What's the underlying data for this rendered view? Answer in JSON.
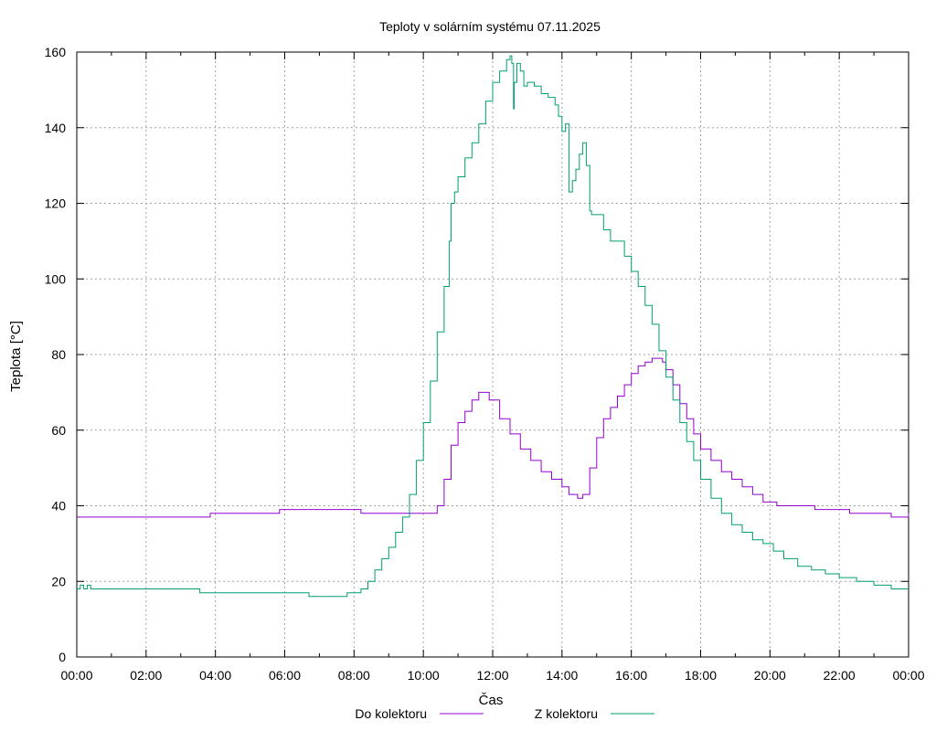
{
  "chart_data": {
    "type": "line",
    "title": "Teploty v solárním systému 07.11.2025",
    "xlabel": "Čas",
    "ylabel": "Teplota [°C]",
    "xlim": [
      0,
      24
    ],
    "ylim": [
      0,
      160
    ],
    "grid": true,
    "legend_position": "bottom-center",
    "x_ticks": [
      "00:00",
      "02:00",
      "04:00",
      "06:00",
      "08:00",
      "10:00",
      "12:00",
      "14:00",
      "16:00",
      "18:00",
      "20:00",
      "22:00",
      "00:00"
    ],
    "y_ticks": [
      0,
      20,
      40,
      60,
      80,
      100,
      120,
      140,
      160
    ],
    "series": [
      {
        "name": "Do kolektoru",
        "color": "#9400d3",
        "x": [
          0,
          2,
          3.8,
          3.85,
          5.8,
          5.85,
          8.1,
          8.2,
          10.2,
          10.4,
          10.6,
          10.8,
          11.0,
          11.2,
          11.4,
          11.6,
          11.7,
          11.9,
          12.2,
          12.5,
          12.8,
          13.1,
          13.4,
          13.7,
          14.0,
          14.2,
          14.45,
          14.6,
          14.8,
          15.0,
          15.2,
          15.4,
          15.6,
          15.8,
          16.0,
          16.2,
          16.4,
          16.6,
          16.8,
          16.9,
          17.0,
          17.2,
          17.4,
          17.6,
          17.8,
          18.0,
          18.3,
          18.6,
          18.9,
          19.2,
          19.5,
          19.8,
          20.2,
          20.8,
          21.3,
          21.8,
          22.3,
          23.0,
          23.45,
          23.5,
          24
        ],
        "values": [
          37,
          37,
          37,
          38,
          38,
          39,
          39,
          38,
          38,
          40,
          47,
          56,
          62,
          65,
          68,
          70,
          70,
          68,
          63,
          59,
          55,
          52,
          49,
          47,
          45,
          43,
          42,
          43,
          50,
          58,
          63,
          66,
          69,
          72,
          75,
          77,
          78,
          79,
          79,
          78,
          76,
          72,
          67,
          63,
          59,
          55,
          52,
          49,
          47,
          45,
          43,
          41,
          40,
          40,
          39,
          39,
          38,
          38,
          38,
          37,
          38
        ]
      },
      {
        "name": "Z kolektoru",
        "color": "#009e73",
        "x": [
          0,
          0.1,
          0.2,
          0.3,
          0.4,
          1,
          2,
          3,
          3.5,
          3.55,
          5,
          6.5,
          6.7,
          7.1,
          7.8,
          8.0,
          8.2,
          8.4,
          8.6,
          8.8,
          9.0,
          9.2,
          9.4,
          9.6,
          9.8,
          10.0,
          10.2,
          10.4,
          10.6,
          10.75,
          10.8,
          10.9,
          11.0,
          11.2,
          11.4,
          11.6,
          11.8,
          12.0,
          12.2,
          12.4,
          12.5,
          12.55,
          12.6,
          12.62,
          12.7,
          12.8,
          12.9,
          13.0,
          13.2,
          13.4,
          13.6,
          13.8,
          13.9,
          14.0,
          14.1,
          14.2,
          14.3,
          14.4,
          14.5,
          14.6,
          14.7,
          14.8,
          14.85,
          14.9,
          15.0,
          15.2,
          15.4,
          15.6,
          15.8,
          16.0,
          16.2,
          16.4,
          16.6,
          16.8,
          17.0,
          17.2,
          17.4,
          17.6,
          17.8,
          18.0,
          18.3,
          18.6,
          18.9,
          19.2,
          19.5,
          19.8,
          20.1,
          20.4,
          20.8,
          21.2,
          21.6,
          22.0,
          22.5,
          23.0,
          23.5,
          24
        ],
        "values": [
          18,
          19,
          18,
          19,
          18,
          18,
          18,
          18,
          18,
          17,
          17,
          17,
          16,
          16,
          17,
          17,
          18,
          20,
          23,
          26,
          29,
          33,
          37,
          43,
          52,
          62,
          73,
          86,
          98,
          110,
          120,
          123,
          127,
          132,
          136,
          141,
          147,
          152,
          155,
          158,
          159,
          157,
          145,
          152,
          157,
          155,
          151,
          152,
          151,
          149,
          148,
          146,
          143,
          139,
          141,
          123,
          126,
          129,
          133,
          136,
          130,
          118,
          117,
          117,
          117,
          113,
          110,
          110,
          106,
          102,
          98,
          93,
          88,
          81,
          74,
          68,
          62,
          57,
          52,
          47,
          42,
          38,
          35,
          33,
          31,
          30,
          28,
          26,
          24,
          23,
          22,
          21,
          20,
          19,
          18,
          18
        ]
      }
    ]
  }
}
